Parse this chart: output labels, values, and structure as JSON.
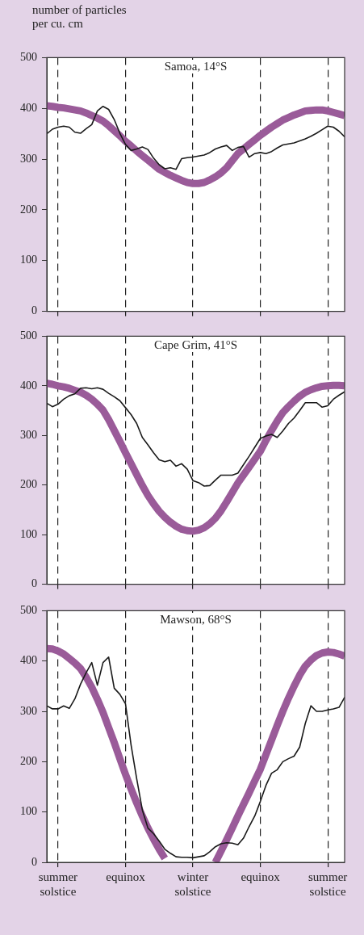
{
  "chart_data": [
    {
      "type": "line",
      "title": "Samoa, 14°S",
      "ylabel": "number of particles per cu. cm",
      "categories": [
        null,
        null,
        null,
        null,
        null,
        null,
        null,
        null,
        null,
        null,
        null,
        null,
        null,
        null,
        null,
        null,
        null,
        null,
        null,
        null,
        null,
        null,
        null,
        null,
        null,
        null,
        null,
        null,
        null,
        null,
        null,
        null,
        null,
        null,
        null,
        null,
        null,
        null,
        null,
        null,
        null,
        null,
        null,
        null,
        null,
        null,
        null,
        null,
        null,
        null,
        null,
        null,
        null,
        null
      ],
      "ylim": [
        0,
        500
      ],
      "yticks": [
        0,
        100,
        200,
        300,
        400,
        500
      ],
      "grid": "x",
      "tick_labels": "y",
      "series": [
        {
          "color": "#9a5b99",
          "values": [
            405,
            404,
            402,
            401,
            399,
            397,
            395,
            391,
            386,
            381,
            375,
            366,
            356,
            346,
            335,
            326,
            316,
            307,
            298,
            289,
            280,
            274,
            268,
            263,
            258,
            254,
            252,
            252,
            254,
            259,
            265,
            273,
            283,
            297,
            311,
            320,
            329,
            338,
            347,
            355,
            363,
            370,
            377,
            382,
            387,
            391,
            395,
            396,
            397,
            397,
            395,
            392,
            389,
            386
          ]
        },
        {
          "color": "#1a1a1a",
          "values": [
            350,
            359,
            363,
            365,
            363,
            353,
            351,
            360,
            368,
            395,
            404,
            398,
            378,
            351,
            329,
            317,
            320,
            324,
            319,
            302,
            289,
            281,
            283,
            280,
            301,
            303,
            304,
            306,
            308,
            313,
            320,
            324,
            327,
            317,
            323,
            325,
            304,
            311,
            313,
            311,
            315,
            322,
            328,
            330,
            332,
            336,
            340,
            345,
            351,
            358,
            365,
            363,
            355,
            344
          ]
        }
      ]
    },
    {
      "type": "line",
      "title": "Cape Grim, 41°S",
      "categories": [
        null,
        null,
        null,
        null,
        null,
        null,
        null,
        null,
        null,
        null,
        null,
        null,
        null,
        null,
        null,
        null,
        null,
        null,
        null,
        null,
        null,
        null,
        null,
        null,
        null,
        null,
        null,
        null,
        null,
        null,
        null,
        null,
        null,
        null,
        null,
        null,
        null,
        null,
        null,
        null,
        null,
        null,
        null,
        null,
        null,
        null,
        null,
        null,
        null,
        null,
        null,
        null,
        null,
        null
      ],
      "ylim": [
        0,
        500
      ],
      "yticks": [
        0,
        100,
        200,
        300,
        400,
        500
      ],
      "grid": "x",
      "tick_labels": "y",
      "series": [
        {
          "color": "#9a5b99",
          "values": [
            405,
            403,
            400,
            398,
            395,
            391,
            387,
            381,
            373,
            363,
            351,
            332,
            310,
            288,
            265,
            243,
            221,
            199,
            179,
            162,
            147,
            135,
            125,
            117,
            111,
            108,
            107,
            109,
            114,
            122,
            133,
            148,
            166,
            185,
            204,
            220,
            236,
            252,
            268,
            290,
            310,
            329,
            346,
            358,
            369,
            379,
            387,
            392,
            396,
            399,
            400,
            401,
            401,
            400
          ]
        },
        {
          "color": "#1a1a1a",
          "values": [
            365,
            358,
            363,
            373,
            380,
            384,
            395,
            396,
            394,
            396,
            393,
            385,
            378,
            370,
            356,
            342,
            324,
            296,
            281,
            265,
            251,
            247,
            250,
            238,
            243,
            232,
            209,
            205,
            198,
            199,
            210,
            220,
            220,
            220,
            224,
            241,
            258,
            276,
            294,
            299,
            302,
            296,
            309,
            324,
            335,
            350,
            366,
            366,
            366,
            357,
            360,
            373,
            381,
            388
          ]
        }
      ]
    },
    {
      "type": "line",
      "title": "Mawson, 68°S",
      "categories": [
        null,
        null,
        "summer solstice",
        null,
        null,
        null,
        null,
        null,
        null,
        null,
        null,
        null,
        null,
        null,
        "equinox",
        null,
        null,
        null,
        null,
        null,
        null,
        null,
        null,
        null,
        null,
        null,
        "winter solstice",
        null,
        null,
        null,
        null,
        null,
        null,
        null,
        null,
        null,
        null,
        null,
        "equinox",
        null,
        null,
        null,
        null,
        null,
        null,
        null,
        null,
        null,
        null,
        null,
        "summer solstice",
        null,
        null,
        null
      ],
      "ylim": [
        0,
        500
      ],
      "yticks": [
        0,
        100,
        200,
        300,
        400,
        500
      ],
      "grid": "x",
      "series": [
        {
          "color": "#9a5b99",
          "values": [
            425,
            424,
            420,
            414,
            405,
            396,
            385,
            368,
            348,
            324,
            298,
            268,
            238,
            206,
            175,
            146,
            118,
            92,
            68,
            46,
            26,
            8,
            null,
            null,
            null,
            null,
            null,
            null,
            null,
            null,
            0,
            22,
            45,
            68,
            92,
            115,
            138,
            162,
            185,
            214,
            243,
            272,
            300,
            326,
            350,
            372,
            390,
            402,
            411,
            416,
            418,
            417,
            414,
            410
          ]
        },
        {
          "color": "#1a1a1a",
          "values": [
            311,
            305,
            305,
            311,
            306,
            325,
            354,
            377,
            397,
            352,
            397,
            408,
            346,
            334,
            315,
            233,
            166,
            104,
            68,
            57,
            42,
            26,
            18,
            11,
            10,
            10,
            9,
            11,
            13,
            21,
            31,
            37,
            39,
            38,
            35,
            48,
            71,
            92,
            121,
            153,
            177,
            184,
            200,
            206,
            211,
            229,
            276,
            311,
            300,
            300,
            303,
            305,
            308,
            328
          ]
        }
      ]
    }
  ]
}
